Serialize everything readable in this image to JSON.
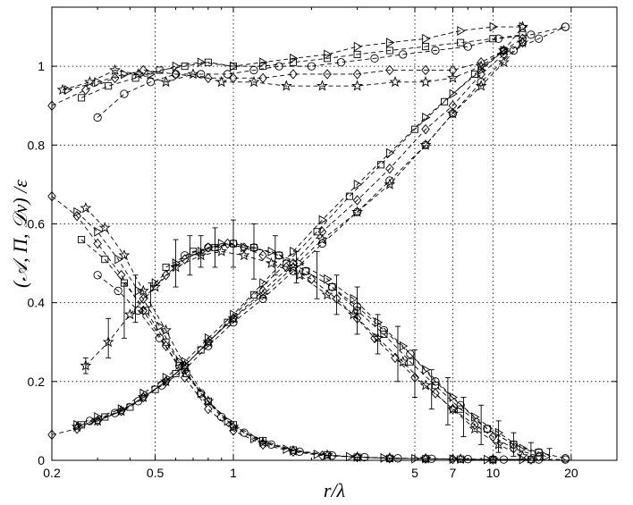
{
  "chart_data": {
    "type": "line",
    "xscale": "log",
    "xlabel": "r/λ",
    "ylabel": "(𝒜, Π, 𝒟ν) /ε",
    "xlim": [
      0.2,
      30
    ],
    "ylim": [
      0,
      1.15
    ],
    "xticks": [
      0.2,
      0.5,
      1,
      5,
      7,
      10,
      20
    ],
    "xtick_labels": [
      "0.2",
      "0.5",
      "1",
      "5",
      "7",
      "10",
      "20"
    ],
    "yticks": [
      0,
      0.2,
      0.4,
      0.6,
      0.8,
      1
    ],
    "ytick_labels": [
      "0",
      "0.2",
      "0.4",
      "0.6",
      "0.8",
      "1"
    ],
    "grid": true,
    "series": [
      {
        "marker": "diamond",
        "group": "top",
        "x": [
          0.2,
          0.27,
          0.35,
          0.45,
          0.6,
          0.8,
          1.0,
          1.3,
          1.7,
          2.3,
          3.0,
          4.0,
          5.5,
          7.0,
          9.0,
          11.0,
          13.0
        ],
        "y": [
          0.9,
          0.94,
          0.97,
          0.99,
          0.98,
          0.97,
          0.97,
          0.97,
          0.98,
          0.98,
          0.98,
          0.99,
          0.99,
          0.99,
          1.01,
          1.04,
          1.07
        ]
      },
      {
        "marker": "star",
        "group": "top",
        "x": [
          0.22,
          0.28,
          0.35,
          0.43,
          0.55,
          0.7,
          0.9,
          1.2,
          1.6,
          2.2,
          3.0,
          4.2,
          5.5,
          7.0,
          9.0,
          11.0,
          13.0
        ],
        "y": [
          0.94,
          0.96,
          0.99,
          0.98,
          0.96,
          0.98,
          0.96,
          0.96,
          0.95,
          0.95,
          0.95,
          0.96,
          0.96,
          0.97,
          1.0,
          1.04,
          1.1
        ]
      },
      {
        "marker": "triangle-right",
        "group": "top",
        "x": [
          0.23,
          0.3,
          0.38,
          0.48,
          0.6,
          0.75,
          1.0,
          1.3,
          1.7,
          2.3,
          3.0,
          4.0,
          5.5,
          7.5,
          10.0,
          13.0
        ],
        "y": [
          0.94,
          0.96,
          0.98,
          0.98,
          1.0,
          1.01,
          1.0,
          1.01,
          1.02,
          1.03,
          1.05,
          1.06,
          1.07,
          1.09,
          1.1,
          1.1
        ]
      },
      {
        "marker": "square",
        "group": "top",
        "x": [
          0.26,
          0.33,
          0.42,
          0.52,
          0.65,
          0.8,
          1.0,
          1.3,
          1.7,
          2.3,
          3.0,
          4.0,
          5.5,
          7.5,
          10.0,
          13.0
        ],
        "y": [
          0.92,
          0.95,
          0.97,
          0.99,
          1.0,
          1.01,
          1.0,
          1.0,
          1.01,
          1.02,
          1.03,
          1.04,
          1.05,
          1.06,
          1.07,
          1.08
        ]
      },
      {
        "marker": "circle",
        "group": "top",
        "x": [
          0.3,
          0.38,
          0.48,
          0.6,
          0.75,
          0.95,
          1.2,
          1.5,
          2.0,
          2.6,
          3.5,
          4.5,
          6.0,
          8.0,
          10.5,
          14.0,
          19.0
        ],
        "y": [
          0.87,
          0.93,
          0.96,
          0.98,
          0.98,
          0.98,
          0.99,
          1.0,
          1.0,
          1.01,
          1.02,
          1.03,
          1.04,
          1.05,
          1.07,
          1.08,
          1.1
        ]
      },
      {
        "marker": "diamond",
        "group": "rising",
        "x": [
          0.2,
          0.25,
          0.3,
          0.37,
          0.45,
          0.55,
          0.65,
          0.8,
          1.0,
          1.3,
          1.7,
          2.2,
          3.0,
          4.0,
          5.5,
          7.0,
          9.0,
          11.0,
          13.0
        ],
        "y": [
          0.065,
          0.08,
          0.1,
          0.125,
          0.16,
          0.2,
          0.24,
          0.3,
          0.36,
          0.43,
          0.5,
          0.58,
          0.66,
          0.74,
          0.84,
          0.9,
          0.98,
          1.03,
          1.06
        ]
      },
      {
        "marker": "star",
        "group": "rising",
        "x": [
          0.25,
          0.3,
          0.37,
          0.45,
          0.55,
          0.65,
          0.8,
          1.0,
          1.3,
          1.7,
          2.2,
          3.0,
          4.0,
          5.5,
          7.0,
          9.0,
          11.0,
          13.0
        ],
        "y": [
          0.085,
          0.1,
          0.125,
          0.16,
          0.2,
          0.24,
          0.3,
          0.36,
          0.42,
          0.49,
          0.56,
          0.63,
          0.7,
          0.8,
          0.88,
          0.95,
          1.01,
          1.06
        ]
      },
      {
        "marker": "triangle-right",
        "group": "rising",
        "x": [
          0.25,
          0.3,
          0.37,
          0.45,
          0.55,
          0.65,
          0.8,
          1.0,
          1.3,
          1.7,
          2.2,
          3.0,
          4.0,
          5.5,
          7.0,
          9.0,
          11.0
        ],
        "y": [
          0.09,
          0.11,
          0.13,
          0.17,
          0.21,
          0.25,
          0.31,
          0.37,
          0.45,
          0.53,
          0.61,
          0.7,
          0.78,
          0.87,
          0.93,
          0.99,
          1.04
        ]
      },
      {
        "marker": "square",
        "group": "rising",
        "x": [
          0.26,
          0.32,
          0.4,
          0.5,
          0.6,
          0.75,
          0.95,
          1.2,
          1.6,
          2.1,
          2.8,
          3.7,
          5.0,
          6.5,
          8.5,
          11.0
        ],
        "y": [
          0.09,
          0.11,
          0.135,
          0.18,
          0.22,
          0.28,
          0.35,
          0.42,
          0.5,
          0.58,
          0.67,
          0.75,
          0.84,
          0.91,
          0.98,
          1.04
        ]
      },
      {
        "marker": "circle",
        "group": "rising",
        "x": [
          0.28,
          0.35,
          0.43,
          0.53,
          0.65,
          0.8,
          1.0,
          1.3,
          1.7,
          2.2,
          3.0,
          4.0,
          5.5,
          7.0,
          9.0,
          12.0,
          15.0,
          19.0
        ],
        "y": [
          0.1,
          0.12,
          0.15,
          0.19,
          0.23,
          0.29,
          0.35,
          0.41,
          0.48,
          0.55,
          0.63,
          0.71,
          0.8,
          0.88,
          0.96,
          1.04,
          1.07,
          1.1
        ]
      },
      {
        "marker": "diamond",
        "group": "peak",
        "x": [
          0.45,
          0.55,
          0.65,
          0.8,
          0.95,
          1.1,
          1.3,
          1.6,
          2.0,
          2.5,
          3.0,
          3.5,
          4.2,
          5.0,
          6.0,
          7.0,
          8.5,
          10.0,
          12.0,
          15.0
        ],
        "y": [
          0.41,
          0.47,
          0.51,
          0.54,
          0.55,
          0.54,
          0.52,
          0.49,
          0.46,
          0.41,
          0.36,
          0.31,
          0.26,
          0.21,
          0.17,
          0.13,
          0.09,
          0.06,
          0.03,
          0.01
        ]
      },
      {
        "marker": "star",
        "group": "peak",
        "x": [
          0.27,
          0.33,
          0.4,
          0.5,
          0.6,
          0.75,
          0.9,
          1.1,
          1.4,
          1.8,
          2.3,
          2.9,
          3.6,
          4.5,
          5.5,
          7.0,
          8.5,
          10.5,
          13.0
        ],
        "y": [
          0.24,
          0.3,
          0.37,
          0.44,
          0.49,
          0.52,
          0.53,
          0.52,
          0.5,
          0.47,
          0.42,
          0.37,
          0.31,
          0.25,
          0.19,
          0.13,
          0.08,
          0.04,
          0.01
        ]
      },
      {
        "marker": "triangle-right",
        "group": "peak",
        "x": [
          0.5,
          0.6,
          0.75,
          0.9,
          1.1,
          1.4,
          1.8,
          2.3,
          2.9,
          3.6,
          4.5,
          5.5,
          7.0,
          8.5,
          10.5,
          13.0,
          16.0
        ],
        "y": [
          0.45,
          0.5,
          0.53,
          0.55,
          0.54,
          0.53,
          0.5,
          0.46,
          0.41,
          0.35,
          0.29,
          0.23,
          0.16,
          0.11,
          0.07,
          0.03,
          0.01
        ]
      },
      {
        "marker": "square",
        "group": "peak",
        "x": [
          0.55,
          0.7,
          0.85,
          1.0,
          1.2,
          1.5,
          1.9,
          2.4,
          3.0,
          3.8,
          4.8,
          6.0,
          7.5,
          9.5,
          12.0,
          15.0
        ],
        "y": [
          0.49,
          0.53,
          0.54,
          0.55,
          0.54,
          0.52,
          0.48,
          0.44,
          0.38,
          0.32,
          0.25,
          0.19,
          0.13,
          0.08,
          0.04,
          0.02
        ]
      },
      {
        "marker": "circle",
        "group": "peak",
        "x": [
          0.65,
          0.8,
          1.0,
          1.2,
          1.5,
          1.9,
          2.4,
          3.0,
          3.8,
          4.8,
          6.0,
          7.5,
          9.5,
          12.0,
          15.0,
          19.0
        ],
        "y": [
          0.52,
          0.54,
          0.55,
          0.54,
          0.52,
          0.48,
          0.44,
          0.39,
          0.33,
          0.27,
          0.2,
          0.14,
          0.08,
          0.04,
          0.02,
          0.005
        ]
      },
      {
        "marker": "diamond",
        "group": "falling",
        "x": [
          0.2,
          0.25,
          0.3,
          0.37,
          0.45,
          0.55,
          0.65,
          0.8,
          1.0,
          1.3,
          1.7,
          2.2,
          3.0,
          4.0,
          5.5,
          7.0,
          10.0,
          14.0
        ],
        "y": [
          0.67,
          0.62,
          0.55,
          0.47,
          0.38,
          0.29,
          0.21,
          0.13,
          0.075,
          0.04,
          0.022,
          0.012,
          0.008,
          0.005,
          0.004,
          0.003,
          0.002,
          0.002
        ]
      },
      {
        "marker": "star",
        "group": "falling",
        "x": [
          0.27,
          0.32,
          0.38,
          0.45,
          0.55,
          0.65,
          0.8,
          1.0,
          1.3,
          1.7,
          2.3,
          3.0,
          4.0,
          5.5,
          7.5,
          10.0
        ],
        "y": [
          0.64,
          0.59,
          0.52,
          0.43,
          0.33,
          0.24,
          0.15,
          0.085,
          0.045,
          0.024,
          0.013,
          0.008,
          0.006,
          0.004,
          0.003,
          0.002
        ]
      },
      {
        "marker": "triangle-right",
        "group": "falling",
        "x": [
          0.25,
          0.3,
          0.36,
          0.43,
          0.52,
          0.62,
          0.75,
          0.95,
          1.2,
          1.6,
          2.1,
          2.8,
          3.8,
          5.0,
          7.0,
          9.5,
          13.0
        ],
        "y": [
          0.63,
          0.58,
          0.51,
          0.43,
          0.34,
          0.25,
          0.17,
          0.1,
          0.055,
          0.028,
          0.015,
          0.009,
          0.006,
          0.004,
          0.003,
          0.002,
          0.002
        ]
      },
      {
        "marker": "square",
        "group": "falling",
        "x": [
          0.26,
          0.32,
          0.38,
          0.46,
          0.55,
          0.66,
          0.8,
          1.0,
          1.3,
          1.7,
          2.3,
          3.0,
          4.0,
          5.5,
          7.5,
          10.0,
          14.0
        ],
        "y": [
          0.56,
          0.51,
          0.45,
          0.38,
          0.3,
          0.22,
          0.15,
          0.09,
          0.05,
          0.026,
          0.014,
          0.008,
          0.005,
          0.004,
          0.003,
          0.002,
          0.002
        ]
      },
      {
        "marker": "circle",
        "group": "falling",
        "x": [
          0.3,
          0.36,
          0.43,
          0.52,
          0.62,
          0.75,
          0.9,
          1.1,
          1.4,
          1.8,
          2.4,
          3.2,
          4.3,
          5.8,
          8.0,
          11.0,
          15.0,
          19.0
        ],
        "y": [
          0.47,
          0.43,
          0.38,
          0.31,
          0.24,
          0.17,
          0.11,
          0.07,
          0.04,
          0.022,
          0.012,
          0.008,
          0.005,
          0.004,
          0.003,
          0.002,
          0.002,
          0.002
        ]
      }
    ],
    "error_bars": [
      {
        "x": 0.27,
        "y": 0.24,
        "err": 0.02
      },
      {
        "x": 0.33,
        "y": 0.31,
        "err": 0.05
      },
      {
        "x": 0.38,
        "y": 0.38,
        "err": 0.07
      },
      {
        "x": 0.42,
        "y": 0.41,
        "err": 0.06
      },
      {
        "x": 0.48,
        "y": 0.42,
        "err": 0.03
      },
      {
        "x": 0.6,
        "y": 0.5,
        "err": 0.06
      },
      {
        "x": 0.68,
        "y": 0.52,
        "err": 0.05
      },
      {
        "x": 0.75,
        "y": 0.53,
        "err": 0.04
      },
      {
        "x": 0.85,
        "y": 0.54,
        "err": 0.05
      },
      {
        "x": 1.0,
        "y": 0.55,
        "err": 0.06
      },
      {
        "x": 1.2,
        "y": 0.53,
        "err": 0.07
      },
      {
        "x": 1.45,
        "y": 0.52,
        "err": 0.05
      },
      {
        "x": 1.75,
        "y": 0.49,
        "err": 0.04
      },
      {
        "x": 2.1,
        "y": 0.47,
        "err": 0.06
      },
      {
        "x": 2.5,
        "y": 0.42,
        "err": 0.05
      },
      {
        "x": 3.0,
        "y": 0.38,
        "err": 0.06
      },
      {
        "x": 3.6,
        "y": 0.32,
        "err": 0.05
      },
      {
        "x": 4.3,
        "y": 0.27,
        "err": 0.07
      },
      {
        "x": 5.0,
        "y": 0.22,
        "err": 0.06
      },
      {
        "x": 5.8,
        "y": 0.18,
        "err": 0.05
      },
      {
        "x": 6.7,
        "y": 0.15,
        "err": 0.06
      },
      {
        "x": 7.7,
        "y": 0.11,
        "err": 0.05
      },
      {
        "x": 9.0,
        "y": 0.09,
        "err": 0.05
      },
      {
        "x": 10.5,
        "y": 0.06,
        "err": 0.04
      },
      {
        "x": 12.0,
        "y": 0.04,
        "err": 0.03
      },
      {
        "x": 14.0,
        "y": 0.025,
        "err": 0.02
      },
      {
        "x": 16.5,
        "y": 0.015,
        "err": 0.015
      }
    ]
  }
}
